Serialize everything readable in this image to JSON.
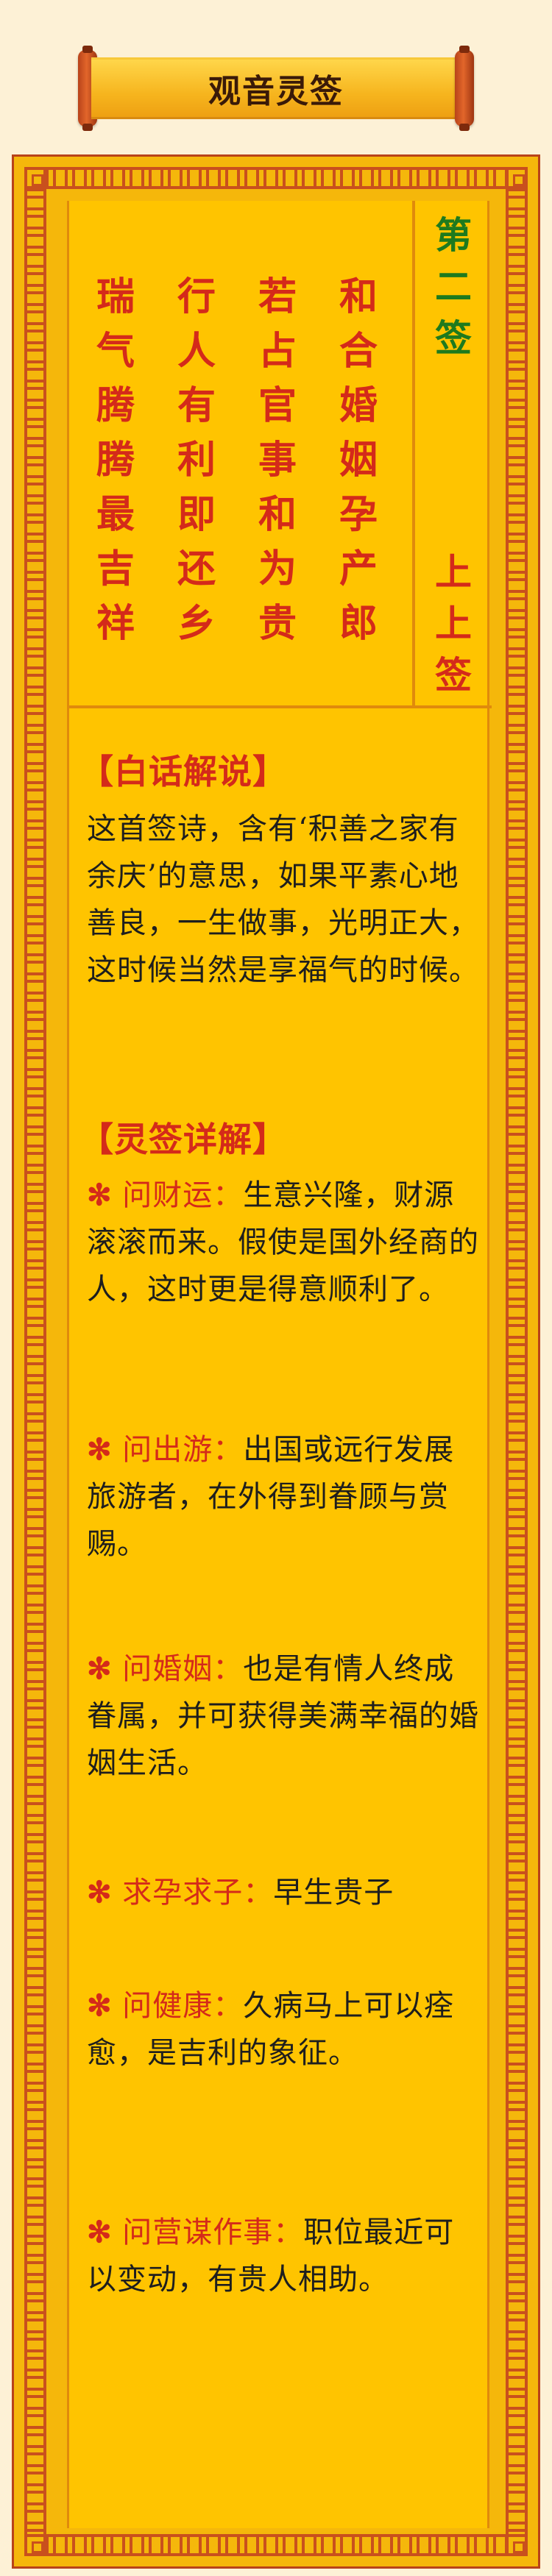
{
  "title": "观音灵签",
  "sign_number": [
    "第",
    "二",
    "签"
  ],
  "sign_grade": [
    "上",
    "上",
    "签"
  ],
  "poem_columns": [
    [
      "和",
      "合",
      "婚",
      "姻",
      "孕",
      "产",
      "郎"
    ],
    [
      "若",
      "占",
      "官",
      "事",
      "和",
      "为",
      "贵"
    ],
    [
      "行",
      "人",
      "有",
      "利",
      "即",
      "还",
      "乡"
    ],
    [
      "瑞",
      "气",
      "腾",
      "腾",
      "最",
      "吉",
      "祥"
    ]
  ],
  "plain_section": {
    "heading": "【白话解说】",
    "text": "这首签诗，含有‘积善之家有余庆’的意思，如果平素心地善良，一生做事，光明正大，这时候当然是享福气的时候。"
  },
  "detail_section": {
    "heading": "【灵签详解】",
    "star": "✻",
    "items": [
      {
        "label": "问财运：",
        "text": "生意兴隆，财源滚滚而来。假使是国外经商的人，这时更是得意顺利了。"
      },
      {
        "label": "问出游：",
        "text": "出国或远行发展旅游者，在外得到眷顾与赏赐。"
      },
      {
        "label": "问婚姻：",
        "text": "也是有情人终成眷属，并可获得美满幸福的婚姻生活。"
      },
      {
        "label": "求孕求子：",
        "text": "早生贵子"
      },
      {
        "label": "问健康：",
        "text": "久病马上可以痊愈，是吉利的象征。"
      },
      {
        "label": "问营谋作事：",
        "text": "职位最近可以变动，有贵人相助。"
      }
    ]
  },
  "colors": {
    "panel": "#ffc400",
    "frame": "#f5b70b",
    "accent_red": "#d42a1a",
    "accent_green": "#1e7a1e",
    "background": "#fdf1d6"
  }
}
